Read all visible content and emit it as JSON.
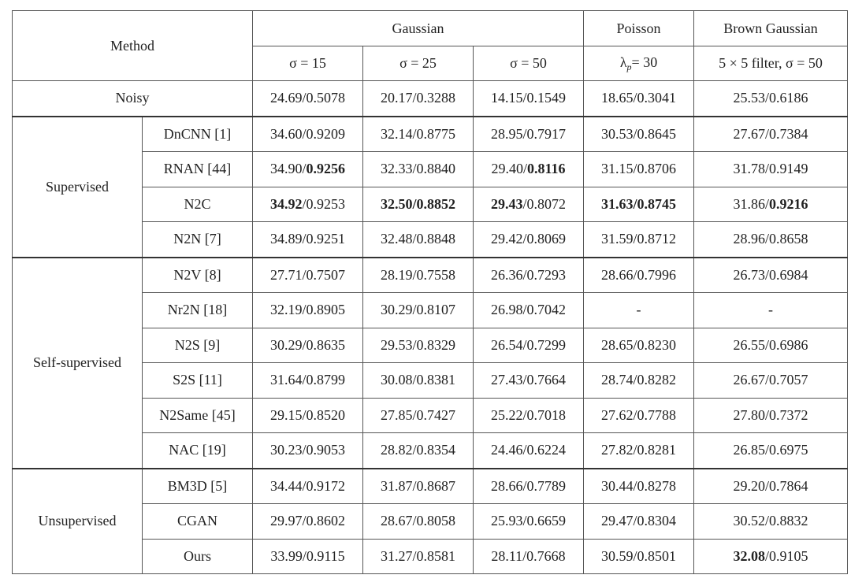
{
  "table": {
    "header": {
      "method": "Method",
      "groups": [
        {
          "name": "Gaussian",
          "span": 3
        },
        {
          "name": "Poisson",
          "span": 1
        },
        {
          "name": "Brown Gaussian",
          "span": 1
        }
      ],
      "subheaders": [
        "σ = 15",
        "σ = 25",
        "σ = 50",
        [
          {
            "text": "λ"
          },
          {
            "text": "p",
            "sub": true
          },
          {
            "text": "= 30"
          }
        ],
        "5 × 5 filter, σ = 50"
      ]
    },
    "noisy": {
      "label": "Noisy",
      "cells": [
        "24.69/0.5078",
        "20.17/0.3288",
        "14.15/0.1549",
        "18.65/0.3041",
        "25.53/0.6186"
      ]
    },
    "groups": [
      {
        "name": "Supervised",
        "rows": [
          {
            "method": "DnCNN [1]",
            "cells": [
              "34.60/0.9209",
              "32.14/0.8775",
              "28.95/0.7917",
              "30.53/0.8645",
              "27.67/0.7384"
            ]
          },
          {
            "method": "RNAN [44]",
            "cells": [
              [
                {
                  "text": "34.90/"
                },
                {
                  "text": "0.9256",
                  "bold": true
                }
              ],
              "32.33/0.8840",
              [
                {
                  "text": "29.40/"
                },
                {
                  "text": "0.8116",
                  "bold": true
                }
              ],
              "31.15/0.8706",
              "31.78/0.9149"
            ]
          },
          {
            "method": "N2C",
            "cells": [
              [
                {
                  "text": "34.92",
                  "bold": true
                },
                {
                  "text": "/0.9253"
                }
              ],
              [
                {
                  "text": "32.50/0.8852",
                  "bold": true
                }
              ],
              [
                {
                  "text": "29.43",
                  "bold": true
                },
                {
                  "text": "/0.8072"
                }
              ],
              [
                {
                  "text": "31.63/0.8745",
                  "bold": true
                }
              ],
              [
                {
                  "text": "31.86/"
                },
                {
                  "text": "0.9216",
                  "bold": true
                }
              ]
            ]
          },
          {
            "method": "N2N [7]",
            "cells": [
              "34.89/0.9251",
              "32.48/0.8848",
              "29.42/0.8069",
              "31.59/0.8712",
              "28.96/0.8658"
            ]
          }
        ]
      },
      {
        "name": "Self-supervised",
        "rows": [
          {
            "method": "N2V [8]",
            "cells": [
              "27.71/0.7507",
              "28.19/0.7558",
              "26.36/0.7293",
              "28.66/0.7996",
              "26.73/0.6984"
            ]
          },
          {
            "method": "Nr2N [18]",
            "cells": [
              "32.19/0.8905",
              "30.29/0.8107",
              "26.98/0.7042",
              "-",
              "-"
            ]
          },
          {
            "method": "N2S [9]",
            "cells": [
              "30.29/0.8635",
              "29.53/0.8329",
              "26.54/0.7299",
              "28.65/0.8230",
              "26.55/0.6986"
            ]
          },
          {
            "method": "S2S [11]",
            "cells": [
              "31.64/0.8799",
              "30.08/0.8381",
              "27.43/0.7664",
              "28.74/0.8282",
              "26.67/0.7057"
            ]
          },
          {
            "method": "N2Same [45]",
            "cells": [
              "29.15/0.8520",
              "27.85/0.7427",
              "25.22/0.7018",
              "27.62/0.7788",
              "27.80/0.7372"
            ]
          },
          {
            "method": "NAC [19]",
            "cells": [
              "30.23/0.9053",
              "28.82/0.8354",
              "24.46/0.6224",
              "27.82/0.8281",
              "26.85/0.6975"
            ]
          }
        ]
      },
      {
        "name": "Unsupervised",
        "rows": [
          {
            "method": "BM3D [5]",
            "cells": [
              "34.44/0.9172",
              "31.87/0.8687",
              "28.66/0.7789",
              "30.44/0.8278",
              "29.20/0.7864"
            ]
          },
          {
            "method": "CGAN",
            "cells": [
              "29.97/0.8602",
              "28.67/0.8058",
              "25.93/0.6659",
              "29.47/0.8304",
              "30.52/0.8832"
            ]
          },
          {
            "method": "Ours",
            "cells": [
              "33.99/0.9115",
              "31.27/0.8581",
              "28.11/0.7668",
              "30.59/0.8501",
              [
                {
                  "text": "32.08",
                  "bold": true
                },
                {
                  "text": "/0.9105"
                }
              ]
            ]
          }
        ]
      }
    ]
  }
}
